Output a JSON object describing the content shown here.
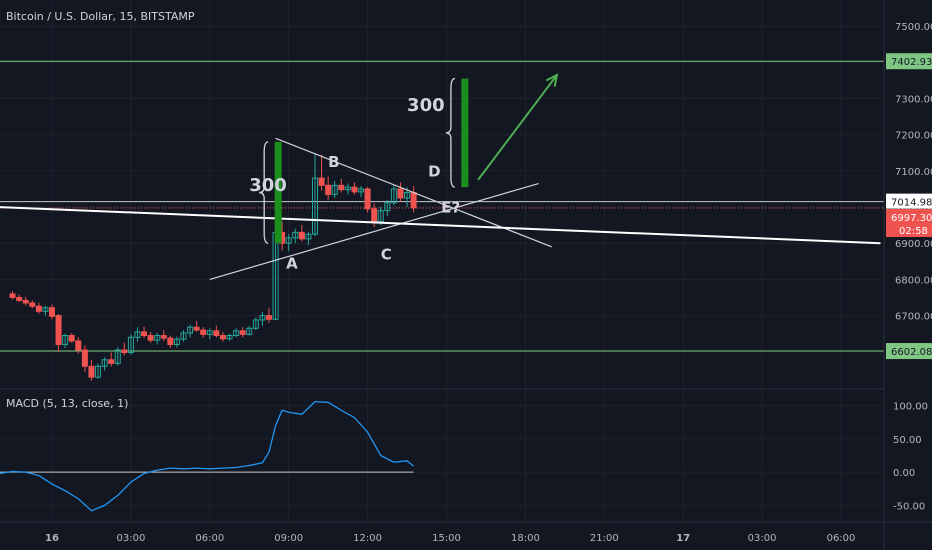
{
  "header": {
    "symbol_title": "Bitcoin / U.S. Dollar, 15, BITSTAMP"
  },
  "macd": {
    "label": "MACD (5, 13, close, 1)"
  },
  "colors": {
    "background": "#131722",
    "up": "#26a69a",
    "down": "#ef5350",
    "level_line": "#81c784",
    "macd_line": "#2196f3",
    "annotation_green": "#1b8e1b",
    "arrow_green": "#4caf50",
    "current_price_bg": "#ef5350",
    "trend_white": "#ffffff"
  },
  "chart_data": [
    {
      "type": "candlestick",
      "title": "Bitcoin / U.S. Dollar, 15, BITSTAMP",
      "ylim": [
        6500,
        7550
      ],
      "y_ticks": [
        6600,
        6700,
        6800,
        6900,
        7000,
        7100,
        7200,
        7300,
        7400,
        7500
      ],
      "y_tick_labels": [
        "6600.00",
        "6700.00",
        "6800.00",
        "6900.00",
        "7000.00",
        "7100.00",
        "7200.00",
        "7300.00",
        "7400.00",
        "7500.00"
      ],
      "x_ticks": [
        {
          "label": "16",
          "hour": 0
        },
        {
          "label": "03:00",
          "hour": 3
        },
        {
          "label": "06:00",
          "hour": 6
        },
        {
          "label": "09:00",
          "hour": 9
        },
        {
          "label": "12:00",
          "hour": 12
        },
        {
          "label": "15:00",
          "hour": 15
        },
        {
          "label": "18:00",
          "hour": 18
        },
        {
          "label": "21:00",
          "hour": 21
        },
        {
          "label": "17",
          "hour": 24
        },
        {
          "label": "03:00",
          "hour": 27
        },
        {
          "label": "06:00",
          "hour": 30
        }
      ],
      "candles": [
        [
          -1.5,
          6760,
          6768,
          6745,
          6750
        ],
        [
          -1.25,
          6750,
          6758,
          6738,
          6742
        ],
        [
          -1.0,
          6742,
          6752,
          6728,
          6735
        ],
        [
          -0.75,
          6735,
          6742,
          6720,
          6726
        ],
        [
          -0.5,
          6726,
          6735,
          6705,
          6712
        ],
        [
          -0.25,
          6712,
          6728,
          6700,
          6722
        ],
        [
          0.0,
          6722,
          6730,
          6690,
          6698
        ],
        [
          0.25,
          6700,
          6705,
          6600,
          6620
        ],
        [
          0.5,
          6620,
          6650,
          6610,
          6645
        ],
        [
          0.75,
          6645,
          6652,
          6625,
          6630
        ],
        [
          1.0,
          6630,
          6640,
          6595,
          6605
        ],
        [
          1.25,
          6605,
          6618,
          6545,
          6560
        ],
        [
          1.5,
          6560,
          6578,
          6520,
          6530
        ],
        [
          1.75,
          6530,
          6568,
          6525,
          6560
        ],
        [
          2.0,
          6560,
          6585,
          6548,
          6578
        ],
        [
          2.25,
          6578,
          6598,
          6560,
          6568
        ],
        [
          2.5,
          6568,
          6612,
          6562,
          6605
        ],
        [
          2.75,
          6605,
          6625,
          6590,
          6598
        ],
        [
          3.0,
          6598,
          6650,
          6592,
          6640
        ],
        [
          3.25,
          6640,
          6668,
          6628,
          6655
        ],
        [
          3.5,
          6655,
          6670,
          6638,
          6645
        ],
        [
          3.75,
          6645,
          6655,
          6625,
          6632
        ],
        [
          4.0,
          6632,
          6652,
          6620,
          6645
        ],
        [
          4.25,
          6645,
          6660,
          6630,
          6638
        ],
        [
          4.5,
          6638,
          6645,
          6610,
          6620
        ],
        [
          4.75,
          6620,
          6642,
          6612,
          6635
        ],
        [
          5.0,
          6635,
          6660,
          6628,
          6652
        ],
        [
          5.25,
          6652,
          6675,
          6640,
          6668
        ],
        [
          5.5,
          6668,
          6685,
          6655,
          6660
        ],
        [
          5.75,
          6660,
          6668,
          6640,
          6648
        ],
        [
          6.0,
          6648,
          6665,
          6635,
          6658
        ],
        [
          6.25,
          6658,
          6672,
          6640,
          6645
        ],
        [
          6.5,
          6645,
          6655,
          6628,
          6636
        ],
        [
          6.75,
          6636,
          6650,
          6630,
          6645
        ],
        [
          7.0,
          6645,
          6665,
          6640,
          6658
        ],
        [
          7.25,
          6658,
          6668,
          6640,
          6648
        ],
        [
          7.5,
          6648,
          6672,
          6645,
          6665
        ],
        [
          7.75,
          6665,
          6695,
          6660,
          6688
        ],
        [
          8.0,
          6688,
          6710,
          6672,
          6700
        ],
        [
          8.25,
          6700,
          6722,
          6680,
          6690
        ],
        [
          8.5,
          6690,
          6950,
          6688,
          6930
        ],
        [
          8.75,
          6930,
          6960,
          6880,
          6900
        ],
        [
          9.0,
          6900,
          6925,
          6878,
          6915
        ],
        [
          9.25,
          6915,
          6940,
          6900,
          6930
        ],
        [
          9.5,
          6930,
          6950,
          6905,
          6912
        ],
        [
          9.75,
          6912,
          6932,
          6895,
          6925
        ],
        [
          10.0,
          6925,
          7150,
          6920,
          7080
        ],
        [
          10.25,
          7080,
          7145,
          7045,
          7060
        ],
        [
          10.5,
          7060,
          7085,
          7020,
          7035
        ],
        [
          10.75,
          7035,
          7072,
          7025,
          7060
        ],
        [
          11.0,
          7060,
          7078,
          7040,
          7048
        ],
        [
          11.25,
          7048,
          7065,
          7035,
          7055
        ],
        [
          11.5,
          7055,
          7068,
          7035,
          7042
        ],
        [
          11.75,
          7042,
          7058,
          7028,
          7050
        ],
        [
          12.0,
          7050,
          7055,
          6985,
          6995
        ],
        [
          12.25,
          6995,
          7010,
          6945,
          6960
        ],
        [
          12.5,
          6960,
          7000,
          6950,
          6990
        ],
        [
          12.75,
          6990,
          7020,
          6975,
          7012
        ],
        [
          13.0,
          7012,
          7062,
          7005,
          7050
        ],
        [
          13.25,
          7050,
          7068,
          7015,
          7025
        ],
        [
          13.5,
          7025,
          7055,
          7000,
          7040
        ],
        [
          13.75,
          7040,
          7058,
          6985,
          6998
        ]
      ],
      "levels": [
        {
          "name": "upper-level",
          "value": 7402.93,
          "label": "7402.93"
        },
        {
          "name": "lower-level",
          "value": 6602.08,
          "label": "6602.08"
        }
      ],
      "price_labels": [
        {
          "name": "reference-price",
          "value": 7014.98,
          "label": "7014.98"
        },
        {
          "name": "current-price",
          "value": 6997.3,
          "label": "6997.30"
        }
      ],
      "countdown": "02:58",
      "trendlines": [
        {
          "name": "triangle-upper-line",
          "from": [
            8.5,
            7190
          ],
          "to": [
            19.0,
            6890
          ]
        },
        {
          "name": "triangle-lower-line",
          "from": [
            6.0,
            6800
          ],
          "to": [
            18.5,
            7065
          ]
        },
        {
          "name": "long-support-line",
          "from": [
            -2.0,
            7000
          ],
          "to": [
            31.5,
            6900
          ]
        }
      ],
      "wave_labels": [
        {
          "text": "A",
          "hour": 8.9,
          "price": 6830
        },
        {
          "text": "B",
          "hour": 10.5,
          "price": 7110
        },
        {
          "text": "C",
          "hour": 12.5,
          "price": 6855
        },
        {
          "text": "D",
          "hour": 14.3,
          "price": 7085
        },
        {
          "text": "E?",
          "hour": 14.8,
          "price": 6985
        }
      ],
      "measure_annotations": [
        {
          "text": "300",
          "bar_hour": 8.6,
          "bar_from": 6900,
          "bar_to": 7180,
          "text_hour": 7.5,
          "text_price": 7045
        },
        {
          "text": "300",
          "bar_hour": 15.7,
          "bar_from": 7055,
          "bar_to": 7355,
          "text_hour": 13.5,
          "text_price": 7265
        }
      ],
      "projection_arrow": {
        "from": [
          16.2,
          7075
        ],
        "to": [
          19.2,
          7365
        ]
      }
    },
    {
      "type": "line",
      "title": "MACD (5, 13, close, 1)",
      "ylim": [
        -75,
        125
      ],
      "y_ticks": [
        -50,
        0,
        50,
        100
      ],
      "y_tick_labels": [
        "-50.00",
        "0.00",
        "50.00",
        "100.00"
      ],
      "zero_line": 0,
      "x": [
        -2.0,
        -1.5,
        -1.0,
        -0.5,
        0.0,
        0.5,
        1.0,
        1.5,
        2.0,
        2.5,
        3.0,
        3.5,
        4.0,
        4.5,
        5.0,
        5.5,
        6.0,
        6.5,
        7.0,
        7.5,
        8.0,
        8.25,
        8.5,
        8.75,
        9.0,
        9.5,
        10.0,
        10.5,
        11.0,
        11.5,
        12.0,
        12.5,
        13.0,
        13.5,
        13.75
      ],
      "values": [
        -2,
        1,
        0,
        -5,
        -18,
        -28,
        -40,
        -58,
        -50,
        -35,
        -15,
        -2,
        3,
        6,
        5,
        6,
        5,
        6,
        7,
        10,
        14,
        30,
        70,
        93,
        90,
        87,
        106,
        105,
        93,
        82,
        60,
        25,
        15,
        17,
        9
      ]
    }
  ]
}
